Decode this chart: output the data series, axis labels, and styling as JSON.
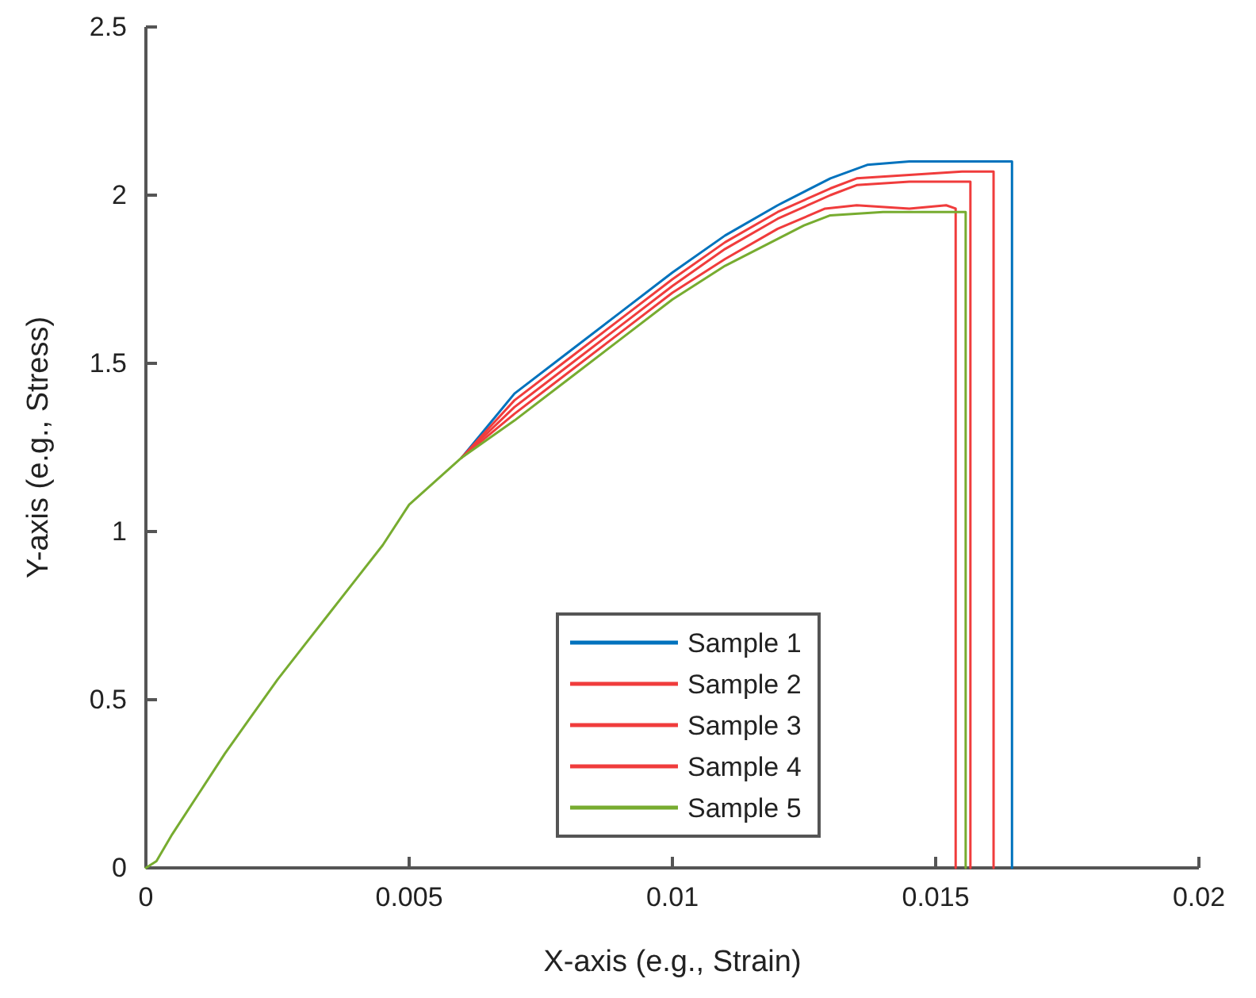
{
  "chart_data": {
    "type": "line",
    "xlabel": "X-axis (e.g., Strain)",
    "ylabel": "Y-axis (e.g., Stress)",
    "xlim": [
      0,
      0.02
    ],
    "xticks": [
      0,
      0.005,
      0.01,
      0.015,
      0.02
    ],
    "ylim": [
      0,
      2.5
    ],
    "yticks": [
      0,
      0.5,
      1,
      1.5,
      2,
      2.5
    ],
    "grid": false,
    "legend": "bottom",
    "line_style": "solid",
    "marker": "none",
    "series": [
      {
        "name": "Sample 1",
        "color": "#0072bd",
        "x": [
          0.006,
          0.007,
          0.008,
          0.009,
          0.01,
          0.011,
          0.012,
          0.013,
          0.0137,
          0.0145,
          0.0155,
          0.01645,
          0.01645
        ],
        "values": [
          1.22,
          1.41,
          1.53,
          1.65,
          1.77,
          1.88,
          1.97,
          2.05,
          2.09,
          2.1,
          2.1,
          2.1,
          0
        ]
      },
      {
        "name": "Sample 2",
        "color": "#f03c3c",
        "x": [
          0.006,
          0.007,
          0.008,
          0.009,
          0.01,
          0.011,
          0.012,
          0.013,
          0.0135,
          0.0145,
          0.0155,
          0.0161,
          0.0161
        ],
        "values": [
          1.22,
          1.39,
          1.51,
          1.63,
          1.75,
          1.86,
          1.95,
          2.02,
          2.05,
          2.06,
          2.07,
          2.07,
          0
        ]
      },
      {
        "name": "Sample 3",
        "color": "#f03c3c",
        "x": [
          0.006,
          0.007,
          0.008,
          0.009,
          0.01,
          0.011,
          0.012,
          0.013,
          0.0135,
          0.0145,
          0.0155,
          0.01566,
          0.01566
        ],
        "values": [
          1.22,
          1.37,
          1.49,
          1.61,
          1.73,
          1.84,
          1.93,
          2.0,
          2.03,
          2.04,
          2.04,
          2.04,
          0
        ]
      },
      {
        "name": "Sample 4",
        "color": "#f03c3c",
        "x": [
          0.006,
          0.007,
          0.008,
          0.009,
          0.01,
          0.011,
          0.012,
          0.0129,
          0.0135,
          0.0145,
          0.0152,
          0.01538,
          0.01538
        ],
        "values": [
          1.22,
          1.35,
          1.47,
          1.59,
          1.71,
          1.81,
          1.9,
          1.96,
          1.97,
          1.96,
          1.97,
          1.96,
          0
        ]
      },
      {
        "name": "Sample 5",
        "color": "#77ac30",
        "x": [
          0,
          0.0002,
          0.0005,
          0.001,
          0.0015,
          0.002,
          0.0025,
          0.003,
          0.0035,
          0.004,
          0.0045,
          0.005,
          0.006,
          0.007,
          0.008,
          0.009,
          0.01,
          0.011,
          0.012,
          0.0125,
          0.013,
          0.014,
          0.015,
          0.01557,
          0.01557
        ],
        "values": [
          0,
          0.02,
          0.1,
          0.22,
          0.34,
          0.45,
          0.56,
          0.66,
          0.76,
          0.86,
          0.96,
          1.08,
          1.22,
          1.33,
          1.45,
          1.57,
          1.69,
          1.79,
          1.87,
          1.91,
          1.94,
          1.95,
          1.95,
          1.95,
          0
        ]
      }
    ]
  }
}
